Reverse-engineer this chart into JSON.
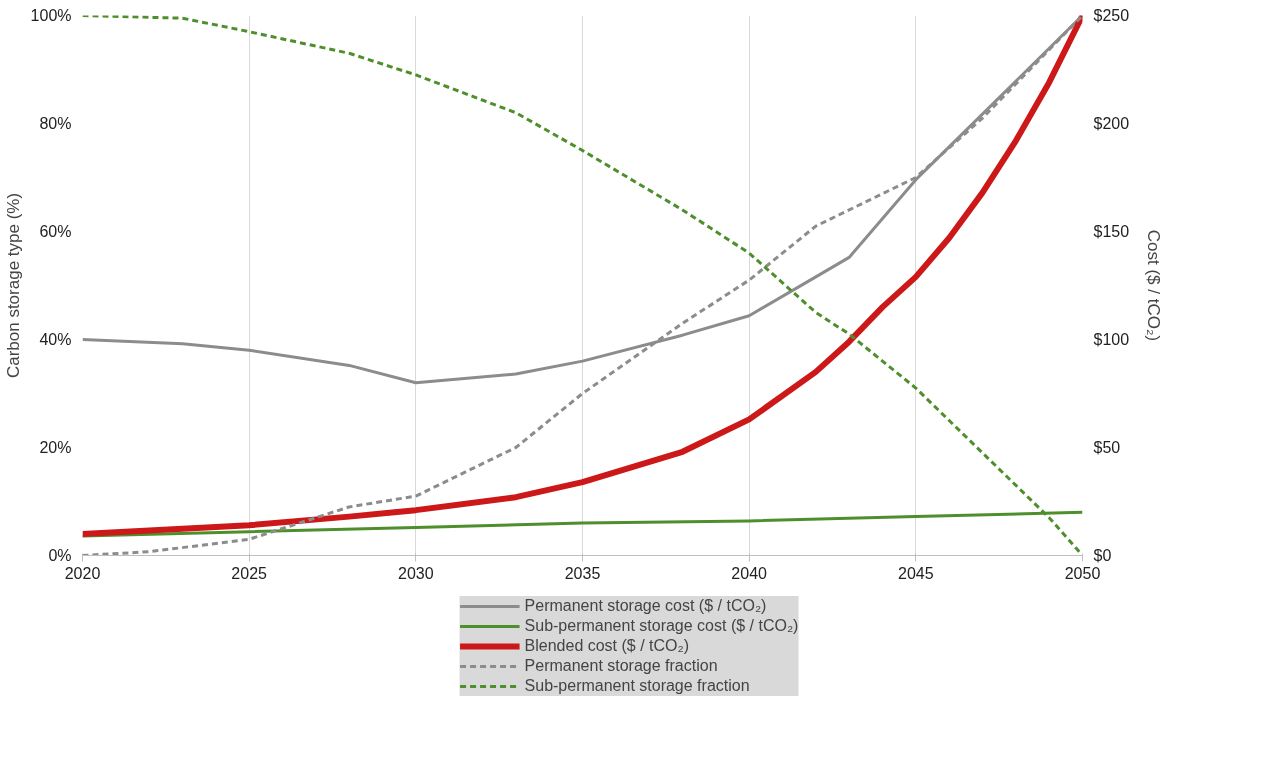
{
  "chart_data": {
    "type": "line",
    "ylabel": "Carbon storage type (%)",
    "y2label": "Cost ($ / tCO₂)",
    "xlim": [
      2020,
      2050
    ],
    "xticks": [
      2020,
      2025,
      2030,
      2035,
      2040,
      2045,
      2050
    ],
    "ylim": [
      0,
      100
    ],
    "yticks": [
      {
        "value": 0,
        "label": "0%"
      },
      {
        "value": 20,
        "label": "20%"
      },
      {
        "value": 40,
        "label": "40%"
      },
      {
        "value": 60,
        "label": "60%"
      },
      {
        "value": 80,
        "label": "80%"
      },
      {
        "value": 100,
        "label": "100%"
      }
    ],
    "y2lim": [
      0,
      250
    ],
    "y2ticks": [
      {
        "value": 0,
        "label": "$0"
      },
      {
        "value": 50,
        "label": "$50"
      },
      {
        "value": 100,
        "label": "$100"
      },
      {
        "value": 150,
        "label": "$150"
      },
      {
        "value": 200,
        "label": "$200"
      },
      {
        "value": 250,
        "label": "$250"
      }
    ],
    "grid": "x",
    "legend": "bottom",
    "marker": "none",
    "series": [
      {
        "name": "Permanent storage cost ($ / tCO₂)",
        "color": "#8c8c8c",
        "axis": "y2",
        "line_style": "solid",
        "x": [
          2020,
          2023,
          2025,
          2028,
          2030,
          2033,
          2035,
          2038,
          2040,
          2042,
          2043,
          2045,
          2050
        ],
        "values": [
          100,
          98,
          95,
          88,
          80,
          84,
          90,
          102,
          111,
          129,
          138,
          174,
          250
        ]
      },
      {
        "name": "Sub-permanent storage cost ($ / tCO₂)",
        "color": "#4e8f2c",
        "axis": "y2",
        "line_style": "solid",
        "x": [
          2020,
          2025,
          2030,
          2035,
          2040,
          2045,
          2050
        ],
        "values": [
          9,
          11,
          13,
          15,
          16,
          18,
          20
        ]
      },
      {
        "name": "Blended cost ($ / tCO₂)",
        "color": "#cc1818",
        "axis": "y2",
        "line_style": "solid",
        "x": [
          2020,
          2025,
          2028,
          2030,
          2033,
          2035,
          2038,
          2040,
          2042,
          2043,
          2044,
          2045,
          2046,
          2047,
          2048,
          2049,
          2050
        ],
        "values": [
          10,
          14,
          18,
          21,
          27,
          34,
          48,
          63,
          85,
          99,
          115,
          129,
          147,
          168,
          192,
          219,
          250
        ]
      },
      {
        "name": "Permanent storage fraction",
        "color": "#8c8c8c",
        "axis": "y",
        "line_style": "dashed",
        "x": [
          2020,
          2022,
          2025,
          2028,
          2030,
          2033,
          2035,
          2038,
          2040,
          2042,
          2045,
          2047,
          2050
        ],
        "values": [
          0,
          0.7,
          3,
          9,
          11,
          20,
          30,
          43,
          51,
          61,
          70,
          81,
          100
        ]
      },
      {
        "name": "Sub-permanent storage fraction",
        "color": "#4e8f2c",
        "axis": "y",
        "line_style": "dashed",
        "x": [
          2020,
          2023,
          2025,
          2028,
          2030,
          2033,
          2035,
          2038,
          2040,
          2042,
          2043,
          2045,
          2047,
          2049,
          2050
        ],
        "values": [
          100,
          99.5,
          97,
          93,
          89,
          82,
          75,
          64,
          56,
          45,
          41,
          31,
          19,
          7,
          0
        ]
      }
    ]
  }
}
